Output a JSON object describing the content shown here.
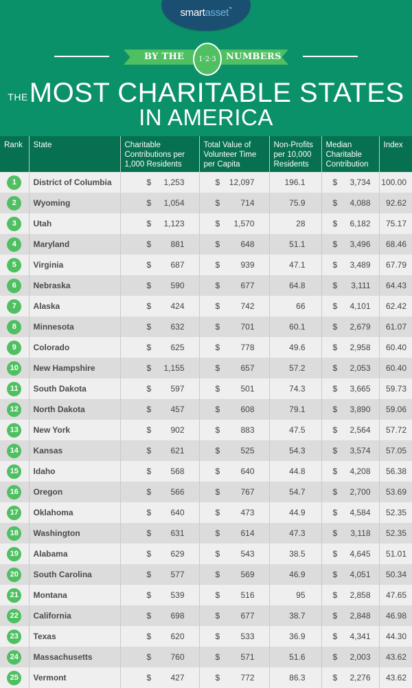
{
  "header": {
    "logo": {
      "part1": "smart",
      "part2": "asset",
      "tm": "™"
    },
    "ribbon": {
      "left": "BY THE",
      "badge": "1·2·3",
      "right": "NUMBERS"
    },
    "title_prefix": "THE",
    "title_line1": "MOST CHARITABLE STATES",
    "title_line2": "IN AMERICA"
  },
  "colors": {
    "background": "#0b9169",
    "table_header": "#067050",
    "rank_badge": "#4fbf62",
    "logo_oval": "#1b4f72",
    "row_odd": "#efefef",
    "row_even": "#dcdcdc"
  },
  "table": {
    "columns": [
      "Rank",
      "State",
      "Charitable Contributions per 1,000 Residents",
      "Total Value of Volunteer Time per Capita",
      "Non-Profits per 10,000 Residents",
      "Median Charitable Contribution",
      "Index"
    ],
    "rows": [
      {
        "rank": "1",
        "state": "District of Columbia",
        "contrib": "1,253",
        "volunteer": "12,097",
        "nonprofits": "196.1",
        "median": "3,734",
        "index": "100.00"
      },
      {
        "rank": "2",
        "state": "Wyoming",
        "contrib": "1,054",
        "volunteer": "714",
        "nonprofits": "75.9",
        "median": "4,088",
        "index": "92.62"
      },
      {
        "rank": "3",
        "state": "Utah",
        "contrib": "1,123",
        "volunteer": "1,570",
        "nonprofits": "28",
        "median": "6,182",
        "index": "75.17"
      },
      {
        "rank": "4",
        "state": "Maryland",
        "contrib": "881",
        "volunteer": "648",
        "nonprofits": "51.1",
        "median": "3,496",
        "index": "68.46"
      },
      {
        "rank": "5",
        "state": "Virginia",
        "contrib": "687",
        "volunteer": "939",
        "nonprofits": "47.1",
        "median": "3,489",
        "index": "67.79"
      },
      {
        "rank": "6",
        "state": "Nebraska",
        "contrib": "590",
        "volunteer": "677",
        "nonprofits": "64.8",
        "median": "3,111",
        "index": "64.43"
      },
      {
        "rank": "7",
        "state": "Alaska",
        "contrib": "424",
        "volunteer": "742",
        "nonprofits": "66",
        "median": "4,101",
        "index": "62.42"
      },
      {
        "rank": "8",
        "state": "Minnesota",
        "contrib": "632",
        "volunteer": "701",
        "nonprofits": "60.1",
        "median": "2,679",
        "index": "61.07"
      },
      {
        "rank": "9",
        "state": "Colorado",
        "contrib": "625",
        "volunteer": "778",
        "nonprofits": "49.6",
        "median": "2,958",
        "index": "60.40"
      },
      {
        "rank": "10",
        "state": "New Hampshire",
        "contrib": "1,155",
        "volunteer": "657",
        "nonprofits": "57.2",
        "median": "2,053",
        "index": "60.40"
      },
      {
        "rank": "11",
        "state": "South Dakota",
        "contrib": "597",
        "volunteer": "501",
        "nonprofits": "74.3",
        "median": "3,665",
        "index": "59.73"
      },
      {
        "rank": "12",
        "state": "North Dakota",
        "contrib": "457",
        "volunteer": "608",
        "nonprofits": "79.1",
        "median": "3,890",
        "index": "59.06"
      },
      {
        "rank": "13",
        "state": "New York",
        "contrib": "902",
        "volunteer": "883",
        "nonprofits": "47.5",
        "median": "2,564",
        "index": "57.72"
      },
      {
        "rank": "14",
        "state": "Kansas",
        "contrib": "621",
        "volunteer": "525",
        "nonprofits": "54.3",
        "median": "3,574",
        "index": "57.05"
      },
      {
        "rank": "15",
        "state": "Idaho",
        "contrib": "568",
        "volunteer": "640",
        "nonprofits": "44.8",
        "median": "4,208",
        "index": "56.38"
      },
      {
        "rank": "16",
        "state": "Oregon",
        "contrib": "566",
        "volunteer": "767",
        "nonprofits": "54.7",
        "median": "2,700",
        "index": "53.69"
      },
      {
        "rank": "17",
        "state": "Oklahoma",
        "contrib": "640",
        "volunteer": "473",
        "nonprofits": "44.9",
        "median": "4,584",
        "index": "52.35"
      },
      {
        "rank": "18",
        "state": "Washington",
        "contrib": "631",
        "volunteer": "614",
        "nonprofits": "47.3",
        "median": "3,118",
        "index": "52.35"
      },
      {
        "rank": "19",
        "state": "Alabama",
        "contrib": "629",
        "volunteer": "543",
        "nonprofits": "38.5",
        "median": "4,645",
        "index": "51.01"
      },
      {
        "rank": "20",
        "state": "South Carolina",
        "contrib": "577",
        "volunteer": "569",
        "nonprofits": "46.9",
        "median": "4,051",
        "index": "50.34"
      },
      {
        "rank": "21",
        "state": "Montana",
        "contrib": "539",
        "volunteer": "516",
        "nonprofits": "95",
        "median": "2,858",
        "index": "47.65"
      },
      {
        "rank": "22",
        "state": "California",
        "contrib": "698",
        "volunteer": "677",
        "nonprofits": "38.7",
        "median": "2,848",
        "index": "46.98"
      },
      {
        "rank": "23",
        "state": "Texas",
        "contrib": "620",
        "volunteer": "533",
        "nonprofits": "36.9",
        "median": "4,341",
        "index": "44.30"
      },
      {
        "rank": "24",
        "state": "Massachusetts",
        "contrib": "760",
        "volunteer": "571",
        "nonprofits": "51.6",
        "median": "2,003",
        "index": "43.62"
      },
      {
        "rank": "25",
        "state": "Vermont",
        "contrib": "427",
        "volunteer": "772",
        "nonprofits": "86.3",
        "median": "2,276",
        "index": "43.62"
      }
    ]
  },
  "chart_data": {
    "type": "table",
    "title": "The Most Charitable States in America",
    "columns": [
      "Rank",
      "State",
      "Charitable Contributions per 1,000 Residents ($)",
      "Total Value of Volunteer Time per Capita ($)",
      "Non-Profits per 10,000 Residents",
      "Median Charitable Contribution ($)",
      "Index"
    ],
    "rows": [
      [
        1,
        "District of Columbia",
        1253,
        12097,
        196.1,
        3734,
        100.0
      ],
      [
        2,
        "Wyoming",
        1054,
        714,
        75.9,
        4088,
        92.62
      ],
      [
        3,
        "Utah",
        1123,
        1570,
        28,
        6182,
        75.17
      ],
      [
        4,
        "Maryland",
        881,
        648,
        51.1,
        3496,
        68.46
      ],
      [
        5,
        "Virginia",
        687,
        939,
        47.1,
        3489,
        67.79
      ],
      [
        6,
        "Nebraska",
        590,
        677,
        64.8,
        3111,
        64.43
      ],
      [
        7,
        "Alaska",
        424,
        742,
        66,
        4101,
        62.42
      ],
      [
        8,
        "Minnesota",
        632,
        701,
        60.1,
        2679,
        61.07
      ],
      [
        9,
        "Colorado",
        625,
        778,
        49.6,
        2958,
        60.4
      ],
      [
        10,
        "New Hampshire",
        1155,
        657,
        57.2,
        2053,
        60.4
      ],
      [
        11,
        "South Dakota",
        597,
        501,
        74.3,
        3665,
        59.73
      ],
      [
        12,
        "North Dakota",
        457,
        608,
        79.1,
        3890,
        59.06
      ],
      [
        13,
        "New York",
        902,
        883,
        47.5,
        2564,
        57.72
      ],
      [
        14,
        "Kansas",
        621,
        525,
        54.3,
        3574,
        57.05
      ],
      [
        15,
        "Idaho",
        568,
        640,
        44.8,
        4208,
        56.38
      ],
      [
        16,
        "Oregon",
        566,
        767,
        54.7,
        2700,
        53.69
      ],
      [
        17,
        "Oklahoma",
        640,
        473,
        44.9,
        4584,
        52.35
      ],
      [
        18,
        "Washington",
        631,
        614,
        47.3,
        3118,
        52.35
      ],
      [
        19,
        "Alabama",
        629,
        543,
        38.5,
        4645,
        51.01
      ],
      [
        20,
        "South Carolina",
        577,
        569,
        46.9,
        4051,
        50.34
      ],
      [
        21,
        "Montana",
        539,
        516,
        95,
        2858,
        47.65
      ],
      [
        22,
        "California",
        698,
        677,
        38.7,
        2848,
        46.98
      ],
      [
        23,
        "Texas",
        620,
        533,
        36.9,
        4341,
        44.3
      ],
      [
        24,
        "Massachusetts",
        760,
        571,
        51.6,
        2003,
        43.62
      ],
      [
        25,
        "Vermont",
        427,
        772,
        86.3,
        2276,
        43.62
      ]
    ]
  }
}
